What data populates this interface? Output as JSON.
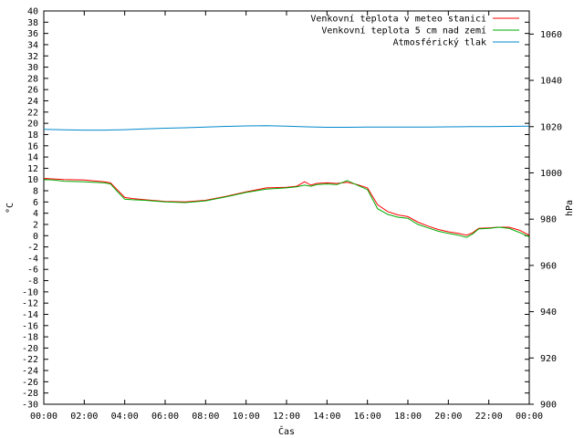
{
  "chart_data": {
    "type": "line",
    "xlabel": "Čas",
    "ylabel": "°C",
    "y2label": "hPa",
    "xlim": [
      0,
      24
    ],
    "ylim": [
      -30,
      40
    ],
    "y2lim": [
      900,
      1070
    ],
    "grid": false,
    "legend_position": "top-right",
    "x_ticks": [
      "00:00",
      "02:00",
      "04:00",
      "06:00",
      "08:00",
      "10:00",
      "12:00",
      "14:00",
      "16:00",
      "18:00",
      "20:00",
      "22:00",
      "00:00"
    ],
    "y_ticks": [
      40,
      38,
      36,
      34,
      32,
      30,
      28,
      26,
      24,
      22,
      20,
      18,
      16,
      14,
      12,
      10,
      8,
      6,
      4,
      2,
      0,
      -2,
      -4,
      -6,
      -8,
      -10,
      -12,
      -14,
      -16,
      -18,
      -20,
      -22,
      -24,
      -26,
      -28,
      -30
    ],
    "y2_ticks": [
      1060,
      1040,
      1020,
      1000,
      980,
      960,
      940,
      920,
      900
    ],
    "series": [
      {
        "name": "Venkovní teplota v meteo stanici",
        "color": "#ff0000",
        "axis": "left",
        "x": [
          0,
          0.5,
          1,
          2,
          3,
          3.3,
          3.6,
          4,
          4.4,
          5,
          6,
          7,
          8,
          9,
          10,
          11,
          12,
          12.5,
          12.9,
          13.2,
          13.5,
          14,
          14.5,
          15,
          15.5,
          16,
          16.5,
          17,
          17.5,
          18,
          18.5,
          19,
          19.5,
          20,
          20.5,
          20.9,
          21.2,
          21.5,
          22,
          22.5,
          23,
          23.5,
          24
        ],
        "y": [
          10.2,
          10.1,
          10.0,
          9.9,
          9.6,
          9.4,
          8.3,
          6.8,
          6.6,
          6.4,
          6.1,
          6.0,
          6.3,
          7.0,
          7.8,
          8.5,
          8.6,
          8.8,
          9.6,
          9.0,
          9.3,
          9.4,
          9.3,
          9.5,
          9.1,
          8.5,
          5.5,
          4.3,
          3.7,
          3.4,
          2.4,
          1.7,
          1.1,
          0.7,
          0.4,
          0.1,
          0.5,
          1.3,
          1.4,
          1.5,
          1.5,
          1.0,
          0.1
        ]
      },
      {
        "name": "Venkovní teplota 5 cm nad zemí",
        "color": "#00aa00",
        "axis": "left",
        "x": [
          0,
          0.5,
          1,
          2,
          3,
          3.3,
          3.6,
          4,
          4.4,
          5,
          6,
          7,
          8,
          9,
          10,
          11,
          12,
          12.5,
          12.9,
          13.2,
          13.5,
          14,
          14.5,
          15,
          15.5,
          16,
          16.5,
          17,
          17.5,
          18,
          18.5,
          19,
          19.5,
          20,
          20.5,
          20.9,
          21.2,
          21.5,
          22,
          22.5,
          23,
          23.5,
          24
        ],
        "y": [
          10.0,
          9.9,
          9.7,
          9.6,
          9.4,
          9.2,
          8.0,
          6.5,
          6.4,
          6.3,
          6.0,
          5.9,
          6.2,
          6.9,
          7.7,
          8.3,
          8.5,
          8.7,
          9.0,
          8.8,
          9.1,
          9.2,
          9.1,
          9.8,
          9.0,
          8.2,
          4.8,
          3.8,
          3.3,
          3.1,
          2.0,
          1.4,
          0.8,
          0.4,
          0.1,
          -0.3,
          0.3,
          1.2,
          1.3,
          1.5,
          1.3,
          0.6,
          -0.2
        ]
      },
      {
        "name": "Atmosférický tlak",
        "color": "#0088cc",
        "axis": "right",
        "x": [
          0,
          1,
          2,
          3,
          4,
          5,
          6,
          7,
          8,
          9,
          10,
          11,
          12,
          13,
          14,
          15,
          16,
          17,
          18,
          19,
          20,
          21,
          22,
          23,
          24
        ],
        "y": [
          1018.8,
          1018.6,
          1018.5,
          1018.5,
          1018.7,
          1019.0,
          1019.3,
          1019.5,
          1019.8,
          1020.1,
          1020.3,
          1020.4,
          1020.2,
          1019.9,
          1019.7,
          1019.7,
          1019.8,
          1019.8,
          1019.8,
          1019.8,
          1019.9,
          1020.0,
          1020.0,
          1020.1,
          1020.2
        ]
      }
    ]
  }
}
